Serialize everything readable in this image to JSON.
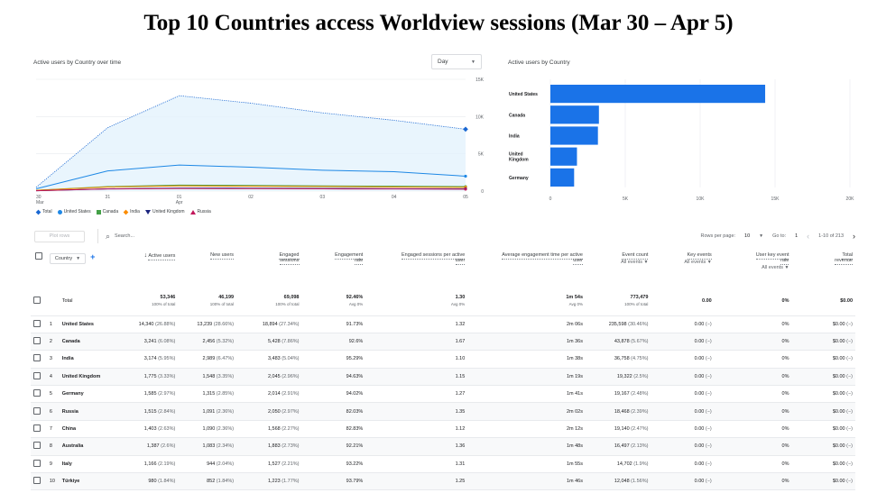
{
  "page": {
    "title": "Top 10 Countries access Worldview sessions (Mar 30 – Apr 5)"
  },
  "line_card": {
    "title": "Active users by Country over time",
    "dropdown": "Day",
    "y_ticks": [
      "15K",
      "10K",
      "5K",
      "0"
    ],
    "x_ticks": [
      {
        "top": "30",
        "bottom": "Mar"
      },
      {
        "top": "31",
        "bottom": ""
      },
      {
        "top": "01",
        "bottom": "Apr"
      },
      {
        "top": "02",
        "bottom": ""
      },
      {
        "top": "03",
        "bottom": ""
      },
      {
        "top": "04",
        "bottom": ""
      },
      {
        "top": "05",
        "bottom": ""
      }
    ],
    "legend": [
      {
        "label": "Total",
        "color": "#1967d2",
        "icon": "diamond-icon"
      },
      {
        "label": "United States",
        "color": "#1e88e5",
        "icon": "circle-icon"
      },
      {
        "label": "Canada",
        "color": "#43a047",
        "icon": "square-icon"
      },
      {
        "label": "India",
        "color": "#fb8c00",
        "icon": "diamond-icon"
      },
      {
        "label": "United Kingdom",
        "color": "#1a237e",
        "icon": "triangle-down-icon"
      },
      {
        "label": "Russia",
        "color": "#c2185b",
        "icon": "triangle-up-icon"
      }
    ]
  },
  "bar_card": {
    "title": "Active users by Country",
    "x_ticks": [
      "0",
      "5K",
      "10K",
      "15K",
      "20K"
    ]
  },
  "chart_data": [
    {
      "type": "line",
      "x": [
        "2024-03-30",
        "2024-03-31",
        "2024-04-01",
        "2024-04-02",
        "2024-04-03",
        "2024-04-04",
        "2024-04-05"
      ],
      "ylim": [
        0,
        15000
      ],
      "series": [
        {
          "name": "Total",
          "values": [
            500,
            8500,
            12800,
            11800,
            10500,
            9500,
            8300
          ]
        },
        {
          "name": "United States",
          "values": [
            300,
            2700,
            3500,
            3200,
            2800,
            2600,
            2000
          ]
        },
        {
          "name": "Canada",
          "values": [
            100,
            600,
            800,
            750,
            700,
            650,
            600
          ]
        },
        {
          "name": "India",
          "values": [
            100,
            550,
            700,
            650,
            600,
            550,
            500
          ]
        },
        {
          "name": "United Kingdom",
          "values": [
            50,
            300,
            400,
            380,
            350,
            320,
            300
          ]
        },
        {
          "name": "Russia",
          "values": [
            50,
            280,
            350,
            330,
            300,
            280,
            250
          ]
        }
      ]
    },
    {
      "type": "bar",
      "categories": [
        "United States",
        "Canada",
        "India",
        "United\nKingdom",
        "Germany"
      ],
      "values": [
        14340,
        3241,
        3174,
        1775,
        1585
      ],
      "xlim": [
        0,
        20000
      ]
    }
  ],
  "toolbar": {
    "plot_rows": "Plot rows",
    "search_placeholder": "Search...",
    "rows_per_page_label": "Rows per page:",
    "rows_per_page": "10",
    "goto_label": "Go to:",
    "goto_value": "1",
    "range": "1-10 of 213"
  },
  "table": {
    "dimension": "Country",
    "headers": {
      "active_users": "Active users",
      "new_users": "New users",
      "engaged_sessions": [
        "Engaged",
        "sessions"
      ],
      "engagement_rate": [
        "Engagement",
        "rate"
      ],
      "eng_per_user": [
        "Engaged sessions per active",
        "user"
      ],
      "avg_time": [
        "Average engagement time per active",
        "user"
      ],
      "event_count": "Event count",
      "event_count_sub": "All events",
      "key_events": "Key events",
      "key_events_sub": "All events",
      "user_key_rate": [
        "User key event",
        "rate"
      ],
      "user_key_rate_sub": "All events",
      "total_revenue": [
        "Total",
        "revenue"
      ]
    },
    "total": {
      "label": "Total",
      "active_users": "53,346",
      "active_users_sub": "100% of total",
      "new_users": "46,199",
      "new_users_sub": "100% of total",
      "engaged_sessions": "69,098",
      "engaged_sessions_sub": "100% of total",
      "engagement_rate": "92.46%",
      "engagement_rate_sub": "Avg 0%",
      "eng_per_user": "1.30",
      "eng_per_user_sub": "Avg 0%",
      "avg_time": "1m 54s",
      "avg_time_sub": "Avg 0%",
      "event_count": "773,479",
      "event_count_sub": "100% of total",
      "key_events": "0.00",
      "user_key_rate": "0%",
      "total_revenue": "$0.00"
    },
    "rows": [
      {
        "n": "1",
        "country": "United States",
        "au": "14,340",
        "au_p": "(26.88%)",
        "nu": "13,239",
        "nu_p": "(28.66%)",
        "es": "18,894",
        "es_p": "(27.34%)",
        "er": "91.73%",
        "epu": "1.32",
        "at": "2m 06s",
        "ec": "235,598",
        "ec_p": "(30.46%)",
        "ke": "0.00",
        "ke_p": "(−)",
        "ukr": "0%",
        "rev": "$0.00",
        "rev_p": "(−)"
      },
      {
        "n": "2",
        "country": "Canada",
        "au": "3,241",
        "au_p": "(6.08%)",
        "nu": "2,456",
        "nu_p": "(5.32%)",
        "es": "5,428",
        "es_p": "(7.86%)",
        "er": "92.6%",
        "epu": "1.67",
        "at": "1m 36s",
        "ec": "43,878",
        "ec_p": "(5.67%)",
        "ke": "0.00",
        "ke_p": "(−)",
        "ukr": "0%",
        "rev": "$0.00",
        "rev_p": "(−)"
      },
      {
        "n": "3",
        "country": "India",
        "au": "3,174",
        "au_p": "(5.95%)",
        "nu": "2,989",
        "nu_p": "(6.47%)",
        "es": "3,483",
        "es_p": "(5.04%)",
        "er": "95.29%",
        "epu": "1.10",
        "at": "1m 38s",
        "ec": "36,758",
        "ec_p": "(4.75%)",
        "ke": "0.00",
        "ke_p": "(−)",
        "ukr": "0%",
        "rev": "$0.00",
        "rev_p": "(−)"
      },
      {
        "n": "4",
        "country": "United Kingdom",
        "au": "1,775",
        "au_p": "(3.33%)",
        "nu": "1,548",
        "nu_p": "(3.35%)",
        "es": "2,045",
        "es_p": "(2.96%)",
        "er": "94.63%",
        "epu": "1.15",
        "at": "1m 19s",
        "ec": "19,322",
        "ec_p": "(2.5%)",
        "ke": "0.00",
        "ke_p": "(−)",
        "ukr": "0%",
        "rev": "$0.00",
        "rev_p": "(−)"
      },
      {
        "n": "5",
        "country": "Germany",
        "au": "1,585",
        "au_p": "(2.97%)",
        "nu": "1,315",
        "nu_p": "(2.85%)",
        "es": "2,014",
        "es_p": "(2.91%)",
        "er": "94.02%",
        "epu": "1.27",
        "at": "1m 41s",
        "ec": "19,167",
        "ec_p": "(2.48%)",
        "ke": "0.00",
        "ke_p": "(−)",
        "ukr": "0%",
        "rev": "$0.00",
        "rev_p": "(−)"
      },
      {
        "n": "6",
        "country": "Russia",
        "au": "1,515",
        "au_p": "(2.84%)",
        "nu": "1,091",
        "nu_p": "(2.36%)",
        "es": "2,050",
        "es_p": "(2.97%)",
        "er": "82.03%",
        "epu": "1.35",
        "at": "2m 02s",
        "ec": "18,468",
        "ec_p": "(2.39%)",
        "ke": "0.00",
        "ke_p": "(−)",
        "ukr": "0%",
        "rev": "$0.00",
        "rev_p": "(−)"
      },
      {
        "n": "7",
        "country": "China",
        "au": "1,403",
        "au_p": "(2.63%)",
        "nu": "1,090",
        "nu_p": "(2.36%)",
        "es": "1,568",
        "es_p": "(2.27%)",
        "er": "82.83%",
        "epu": "1.12",
        "at": "2m 12s",
        "ec": "19,140",
        "ec_p": "(2.47%)",
        "ke": "0.00",
        "ke_p": "(−)",
        "ukr": "0%",
        "rev": "$0.00",
        "rev_p": "(−)"
      },
      {
        "n": "8",
        "country": "Australia",
        "au": "1,387",
        "au_p": "(2.6%)",
        "nu": "1,083",
        "nu_p": "(2.34%)",
        "es": "1,883",
        "es_p": "(2.73%)",
        "er": "92.21%",
        "epu": "1.36",
        "at": "1m 48s",
        "ec": "16,497",
        "ec_p": "(2.13%)",
        "ke": "0.00",
        "ke_p": "(−)",
        "ukr": "0%",
        "rev": "$0.00",
        "rev_p": "(−)"
      },
      {
        "n": "9",
        "country": "Italy",
        "au": "1,166",
        "au_p": "(2.19%)",
        "nu": "944",
        "nu_p": "(2.04%)",
        "es": "1,527",
        "es_p": "(2.21%)",
        "er": "93.22%",
        "epu": "1.31",
        "at": "1m 55s",
        "ec": "14,702",
        "ec_p": "(1.9%)",
        "ke": "0.00",
        "ke_p": "(−)",
        "ukr": "0%",
        "rev": "$0.00",
        "rev_p": "(−)"
      },
      {
        "n": "10",
        "country": "Türkiye",
        "au": "980",
        "au_p": "(1.84%)",
        "nu": "852",
        "nu_p": "(1.84%)",
        "es": "1,223",
        "es_p": "(1.77%)",
        "er": "93.79%",
        "epu": "1.25",
        "at": "1m 46s",
        "ec": "12,048",
        "ec_p": "(1.56%)",
        "ke": "0.00",
        "ke_p": "(−)",
        "ukr": "0%",
        "rev": "$0.00",
        "rev_p": "(−)"
      }
    ]
  }
}
